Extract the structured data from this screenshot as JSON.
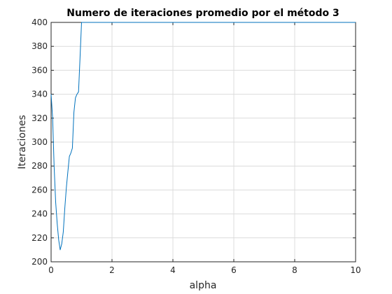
{
  "chart_data": {
    "type": "line",
    "title": "Numero de iteraciones promedio por el método 3",
    "xlabel": "alpha",
    "ylabel": "Iteraciones",
    "xlim": [
      0,
      10
    ],
    "ylim": [
      200,
      400
    ],
    "xticks": [
      0,
      2,
      4,
      6,
      8,
      10
    ],
    "yticks": [
      200,
      220,
      240,
      260,
      280,
      300,
      320,
      340,
      360,
      380,
      400
    ],
    "grid": true,
    "line_color": "#0072bd",
    "series": [
      {
        "x": [
          0.0,
          0.05,
          0.1,
          0.15,
          0.2,
          0.25,
          0.3,
          0.35,
          0.4,
          0.45,
          0.5,
          0.55,
          0.6,
          0.65,
          0.7,
          0.75,
          0.8,
          0.85,
          0.9,
          0.95,
          1.0,
          1.05,
          10.0
        ],
        "y": [
          340,
          320,
          280,
          250,
          232,
          218,
          210,
          215,
          225,
          245,
          262,
          275,
          288,
          291,
          295,
          325,
          337,
          340,
          342,
          370,
          400,
          400,
          400
        ]
      }
    ]
  }
}
